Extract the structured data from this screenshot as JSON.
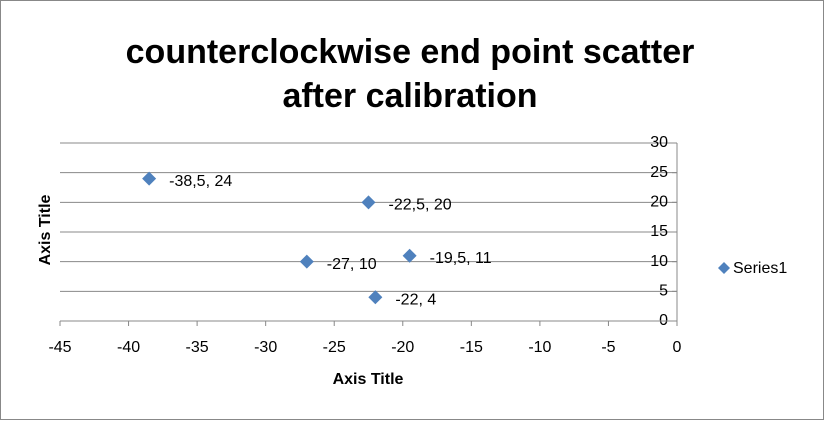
{
  "chart_data": {
    "type": "scatter",
    "title": "counterclockwise end point scatter after calibration",
    "x_label": "Axis Title",
    "y_label": "Axis Title",
    "series": [
      {
        "name": "Series1",
        "color": "#4f81bd",
        "x": [
          -38.5,
          -22.5,
          -27,
          -19.5,
          -22
        ],
        "values": [
          24,
          20,
          10,
          11,
          4
        ],
        "value_labels": [
          "-38,5, 24",
          "-22,5, 20",
          "-27, 10",
          "-19,5, 11",
          "-22, 4"
        ]
      }
    ],
    "xlim": [
      -45,
      0
    ],
    "xticks": [
      -45,
      -40,
      -35,
      -30,
      -25,
      -20,
      -15,
      -10,
      -5,
      0
    ],
    "ylim": [
      0,
      30
    ],
    "yticks": [
      0,
      5,
      10,
      15,
      20,
      25,
      30
    ],
    "grid": true,
    "legend": "right"
  }
}
